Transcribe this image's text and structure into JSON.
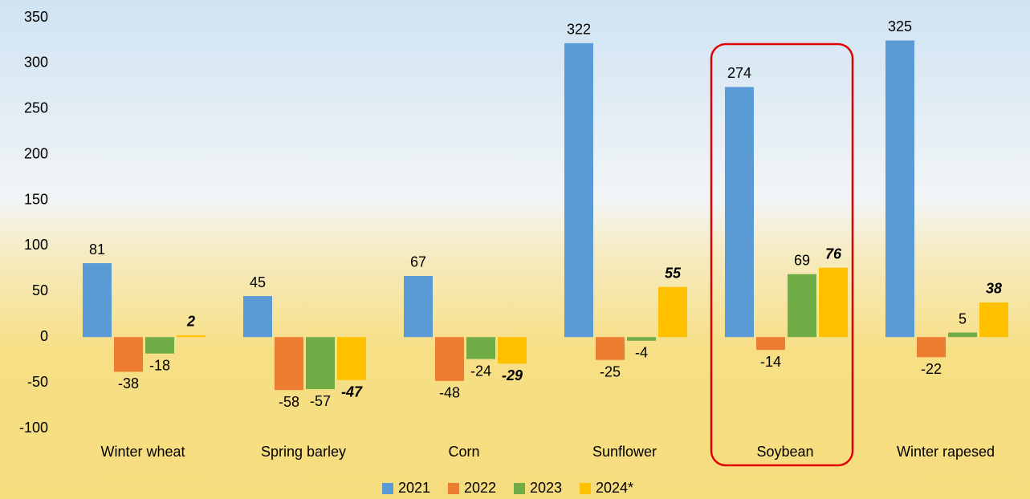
{
  "chart_data": {
    "type": "bar",
    "categories": [
      "Winter wheat",
      "Spring barley",
      "Corn",
      "Sunflower",
      "Soybean",
      "Winter rapesed"
    ],
    "series": [
      {
        "name": "2021",
        "color": "#5b9bd5",
        "values": [
          81,
          45,
          67,
          322,
          274,
          325
        ]
      },
      {
        "name": "2022",
        "color": "#ed7d31",
        "values": [
          -38,
          -58,
          -48,
          -25,
          -14,
          -22
        ]
      },
      {
        "name": "2023",
        "color": "#70ad47",
        "values": [
          -18,
          -57,
          -24,
          -4,
          69,
          5
        ]
      },
      {
        "name": "2024*",
        "color": "#ffc000",
        "values": [
          2,
          -47,
          -29,
          55,
          76,
          38
        ]
      }
    ],
    "ylim": [
      -100,
      350
    ],
    "yticks": [
      -100,
      -50,
      0,
      50,
      100,
      150,
      200,
      250,
      300,
      350
    ],
    "grid": false
  }
}
